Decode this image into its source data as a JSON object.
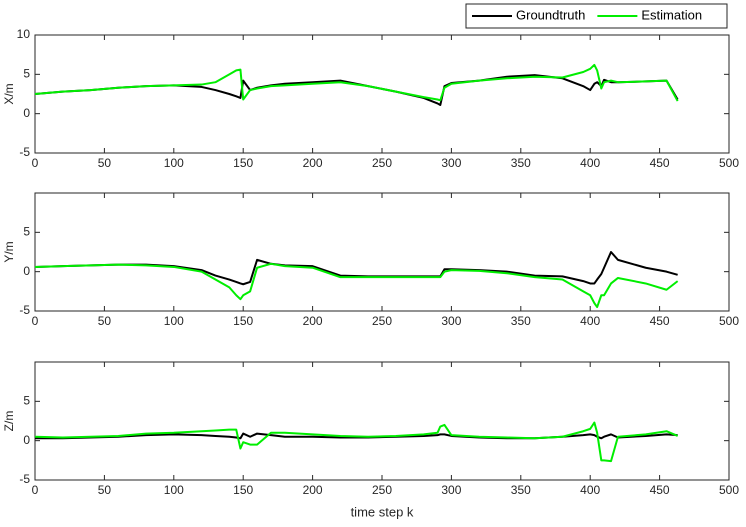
{
  "legend": {
    "corner": "top-right"
  },
  "chart_data": [
    {
      "type": "line",
      "ylabel": "X/m",
      "xlim": [
        0,
        500
      ],
      "ylim": [
        -5,
        10
      ],
      "xticks": [
        0,
        50,
        100,
        150,
        200,
        250,
        300,
        350,
        400,
        450,
        500
      ],
      "yticks": [
        -5,
        0,
        5,
        10
      ],
      "x": [
        0,
        20,
        40,
        60,
        80,
        100,
        120,
        130,
        140,
        145,
        148,
        150,
        155,
        160,
        170,
        180,
        200,
        220,
        240,
        260,
        280,
        290,
        292,
        295,
        300,
        320,
        340,
        360,
        380,
        395,
        400,
        403,
        405,
        408,
        410,
        415,
        420,
        440,
        455,
        463
      ],
      "series": [
        {
          "name": "Groundtruth",
          "color": "#000000",
          "values": [
            2.5,
            2.8,
            3.0,
            3.3,
            3.5,
            3.6,
            3.4,
            3.0,
            2.5,
            2.2,
            2.0,
            4.2,
            3.0,
            3.3,
            3.6,
            3.8,
            4.0,
            4.2,
            3.5,
            2.8,
            2.0,
            1.3,
            1.1,
            3.5,
            3.9,
            4.2,
            4.7,
            4.9,
            4.5,
            3.5,
            3.0,
            3.8,
            4.0,
            3.5,
            4.3,
            4.0,
            4.0,
            4.1,
            4.2,
            1.8
          ]
        },
        {
          "name": "Estimation",
          "color": "#00ee00",
          "values": [
            2.5,
            2.8,
            3.0,
            3.3,
            3.5,
            3.6,
            3.7,
            4.0,
            5.0,
            5.5,
            5.6,
            1.8,
            3.0,
            3.2,
            3.5,
            3.6,
            3.8,
            4.0,
            3.5,
            2.8,
            2.1,
            1.8,
            1.7,
            3.3,
            3.8,
            4.2,
            4.5,
            4.7,
            4.6,
            5.3,
            5.7,
            6.2,
            5.5,
            3.2,
            4.0,
            4.2,
            4.0,
            4.1,
            4.2,
            1.6
          ]
        }
      ]
    },
    {
      "type": "line",
      "ylabel": "Y/m",
      "xlim": [
        0,
        500
      ],
      "ylim": [
        -5,
        10
      ],
      "xticks": [
        0,
        50,
        100,
        150,
        200,
        250,
        300,
        350,
        400,
        450,
        500
      ],
      "yticks": [
        -5,
        0,
        5
      ],
      "x": [
        0,
        20,
        40,
        60,
        80,
        100,
        120,
        130,
        140,
        145,
        148,
        150,
        155,
        160,
        170,
        180,
        200,
        220,
        240,
        260,
        280,
        290,
        292,
        295,
        300,
        320,
        340,
        360,
        380,
        395,
        400,
        403,
        405,
        408,
        410,
        415,
        420,
        440,
        455,
        463
      ],
      "series": [
        {
          "color": "#000000",
          "values": [
            0.6,
            0.7,
            0.8,
            0.9,
            0.9,
            0.7,
            0.2,
            -0.5,
            -1.0,
            -1.3,
            -1.5,
            -1.6,
            -1.3,
            1.5,
            1.0,
            0.8,
            0.7,
            -0.5,
            -0.6,
            -0.6,
            -0.6,
            -0.6,
            -0.6,
            0.3,
            0.3,
            0.2,
            0.0,
            -0.5,
            -0.6,
            -1.2,
            -1.5,
            -1.5,
            -1.0,
            -0.3,
            0.5,
            2.5,
            1.5,
            0.5,
            0.0,
            -0.4
          ]
        },
        {
          "color": "#00ee00",
          "values": [
            0.6,
            0.7,
            0.8,
            0.9,
            0.8,
            0.6,
            0.0,
            -1.0,
            -2.0,
            -3.0,
            -3.5,
            -3.0,
            -2.5,
            0.5,
            1.0,
            0.7,
            0.5,
            -0.7,
            -0.7,
            -0.7,
            -0.7,
            -0.7,
            -0.7,
            0.0,
            0.2,
            0.1,
            -0.2,
            -0.7,
            -1.0,
            -2.5,
            -3.0,
            -4.0,
            -4.5,
            -3.0,
            -3.0,
            -1.5,
            -0.8,
            -1.5,
            -2.3,
            -1.2
          ]
        }
      ]
    },
    {
      "type": "line",
      "ylabel": "Z/m",
      "xlabel": "time step k",
      "xlim": [
        0,
        500
      ],
      "ylim": [
        -5,
        10
      ],
      "xticks": [
        0,
        50,
        100,
        150,
        200,
        250,
        300,
        350,
        400,
        450,
        500
      ],
      "yticks": [
        -5,
        0,
        5
      ],
      "x": [
        0,
        20,
        40,
        60,
        80,
        100,
        120,
        130,
        140,
        145,
        148,
        150,
        155,
        160,
        170,
        180,
        200,
        220,
        240,
        260,
        280,
        290,
        292,
        295,
        300,
        320,
        340,
        360,
        380,
        395,
        400,
        403,
        405,
        408,
        410,
        415,
        420,
        440,
        455,
        463
      ],
      "series": [
        {
          "color": "#000000",
          "values": [
            0.3,
            0.3,
            0.4,
            0.5,
            0.7,
            0.8,
            0.7,
            0.6,
            0.5,
            0.4,
            0.3,
            0.9,
            0.5,
            0.9,
            0.7,
            0.5,
            0.5,
            0.4,
            0.4,
            0.5,
            0.6,
            0.7,
            0.8,
            0.8,
            0.6,
            0.4,
            0.3,
            0.3,
            0.5,
            0.7,
            0.8,
            0.7,
            0.5,
            0.3,
            0.5,
            0.8,
            0.4,
            0.6,
            0.8,
            0.7
          ]
        },
        {
          "color": "#00ee00",
          "values": [
            0.5,
            0.4,
            0.5,
            0.6,
            0.9,
            1.0,
            1.2,
            1.3,
            1.4,
            1.4,
            -1.0,
            -0.2,
            -0.5,
            -0.5,
            1.0,
            1.0,
            0.8,
            0.6,
            0.5,
            0.6,
            0.8,
            1.0,
            1.8,
            2.0,
            0.7,
            0.5,
            0.4,
            0.3,
            0.5,
            1.2,
            1.5,
            2.3,
            1.0,
            -2.5,
            -2.5,
            -2.6,
            0.5,
            0.8,
            1.2,
            0.6
          ]
        }
      ]
    }
  ]
}
